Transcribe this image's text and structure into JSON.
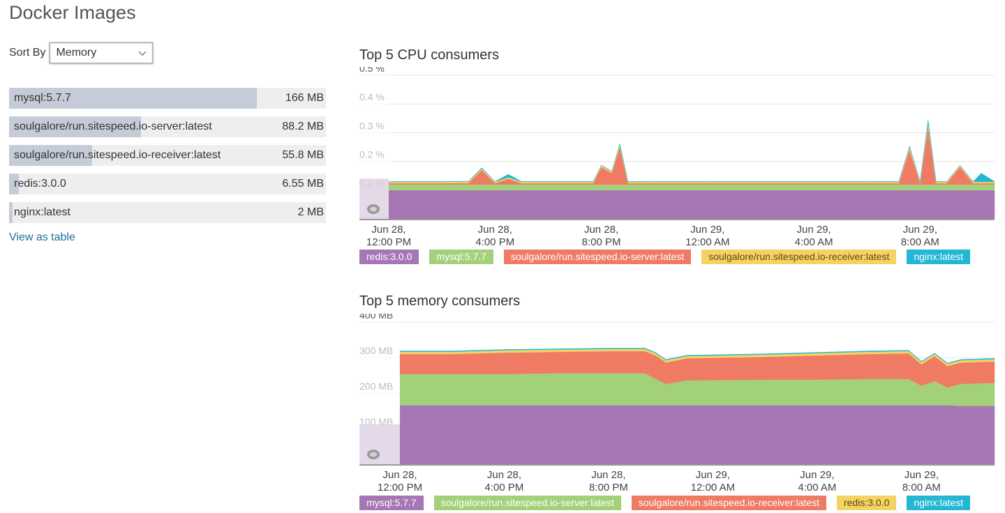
{
  "page": {
    "title": "Docker Images"
  },
  "sort": {
    "label": "Sort By",
    "value": "Memory"
  },
  "images": [
    {
      "name": "mysql:5.7.7",
      "value": "166 MB",
      "fraction": 0.782
    },
    {
      "name": "soulgalore/run.sitespeed.io-server:latest",
      "value": "88.2 MB",
      "fraction": 0.416
    },
    {
      "name": "soulgalore/run.sitespeed.io-receiver:latest",
      "value": "55.8 MB",
      "fraction": 0.263
    },
    {
      "name": "redis:3.0.0",
      "value": "6.55 MB",
      "fraction": 0.031
    },
    {
      "name": "nginx:latest",
      "value": "2 MB",
      "fraction": 0.01
    }
  ],
  "links": {
    "view_as_table": "View as table"
  },
  "colors": {
    "purple": "#a676b5",
    "green": "#a3d179",
    "red": "#ef7b65",
    "yellow": "#f5d363",
    "cyan": "#22b7d3"
  },
  "chart_data": [
    {
      "type": "area",
      "stacked": true,
      "title": "Top 5 CPU consumers",
      "ylabel": "",
      "y_unit": "%",
      "ylim": [
        0,
        0.5
      ],
      "yticks": [
        "0.1 %",
        "0.2 %",
        "0.3 %",
        "0.4 %",
        "0.5 %"
      ],
      "xlim": [
        0,
        22.8
      ],
      "xticks": [
        {
          "t": 0,
          "line1": "Jun 28,",
          "line2": "12:00 PM"
        },
        {
          "t": 4,
          "line1": "Jun 28,",
          "line2": "4:00 PM"
        },
        {
          "t": 8,
          "line1": "Jun 28,",
          "line2": "8:00 PM"
        },
        {
          "t": 12,
          "line1": "Jun 29,",
          "line2": "12:00 AM"
        },
        {
          "t": 16,
          "line1": "Jun 29,",
          "line2": "4:00 AM"
        },
        {
          "t": 20,
          "line1": "Jun 29,",
          "line2": "8:00 AM"
        }
      ],
      "x": [
        0,
        1,
        2,
        3,
        3.5,
        4,
        4.5,
        5,
        6,
        7,
        7.7,
        8,
        8.4,
        8.7,
        9,
        10,
        12,
        14,
        16,
        18,
        19.2,
        19.6,
        20,
        20.3,
        20.6,
        21,
        21.5,
        22,
        22.3,
        22.8
      ],
      "series": [
        {
          "name": "redis:3.0.0",
          "color": "#a676b5",
          "values": [
            0.1,
            0.1,
            0.1,
            0.1,
            0.1,
            0.1,
            0.1,
            0.1,
            0.1,
            0.1,
            0.1,
            0.1,
            0.1,
            0.1,
            0.1,
            0.1,
            0.1,
            0.1,
            0.1,
            0.1,
            0.1,
            0.1,
            0.1,
            0.1,
            0.1,
            0.1,
            0.1,
            0.1,
            0.1,
            0.1
          ]
        },
        {
          "name": "mysql:5.7.7",
          "color": "#a3d179",
          "values": [
            0.02,
            0.02,
            0.02,
            0.02,
            0.02,
            0.02,
            0.02,
            0.02,
            0.02,
            0.02,
            0.02,
            0.02,
            0.02,
            0.02,
            0.02,
            0.02,
            0.02,
            0.02,
            0.02,
            0.02,
            0.02,
            0.02,
            0.02,
            0.02,
            0.02,
            0.02,
            0.02,
            0.02,
            0.02,
            0.02
          ]
        },
        {
          "name": "soulgalore/run.sitespeed.io-server:latest",
          "color": "#ef7b65",
          "values": [
            0.004,
            0.004,
            0.004,
            0.005,
            0.05,
            0.004,
            0.02,
            0.004,
            0.004,
            0.004,
            0.004,
            0.06,
            0.04,
            0.13,
            0.004,
            0.004,
            0.004,
            0.004,
            0.004,
            0.004,
            0.004,
            0.12,
            0.004,
            0.2,
            0.004,
            0.004,
            0.06,
            0.004,
            0.004,
            0.004
          ]
        },
        {
          "name": "soulgalore/run.sitespeed.io-receiver:latest",
          "color": "#f5d363",
          "values": [
            0.005,
            0.005,
            0.005,
            0.005,
            0.005,
            0.005,
            0.005,
            0.005,
            0.005,
            0.005,
            0.005,
            0.006,
            0.005,
            0.008,
            0.005,
            0.005,
            0.005,
            0.005,
            0.005,
            0.005,
            0.005,
            0.01,
            0.005,
            0.015,
            0.005,
            0.005,
            0.005,
            0.005,
            0.005,
            0.005
          ]
        },
        {
          "name": "nginx:latest",
          "color": "#22b7d3",
          "values": [
            0.001,
            0.001,
            0.001,
            0.001,
            0.003,
            0.001,
            0.01,
            0.001,
            0.001,
            0.001,
            0.001,
            0.001,
            0.001,
            0.004,
            0.001,
            0.001,
            0.001,
            0.001,
            0.001,
            0.001,
            0.001,
            0.003,
            0.001,
            0.01,
            0.001,
            0.001,
            0.001,
            0.001,
            0.03,
            0.001
          ]
        }
      ]
    },
    {
      "type": "area",
      "stacked": true,
      "title": "Top 5 memory consumers",
      "ylabel": "",
      "y_unit": "MB",
      "ylim": [
        0,
        400
      ],
      "yticks": [
        "100 MB",
        "200 MB",
        "300 MB",
        "400 MB"
      ],
      "xlim": [
        0,
        22.8
      ],
      "xticks": [
        {
          "t": 0,
          "line1": "Jun 28,",
          "line2": "12:00 PM"
        },
        {
          "t": 4,
          "line1": "Jun 28,",
          "line2": "4:00 PM"
        },
        {
          "t": 8,
          "line1": "Jun 28,",
          "line2": "8:00 PM"
        },
        {
          "t": 12,
          "line1": "Jun 29,",
          "line2": "12:00 AM"
        },
        {
          "t": 16,
          "line1": "Jun 29,",
          "line2": "4:00 AM"
        },
        {
          "t": 20,
          "line1": "Jun 29,",
          "line2": "8:00 AM"
        }
      ],
      "x": [
        0,
        2,
        4,
        6,
        8,
        9.4,
        9.8,
        10.2,
        11,
        14,
        16,
        18,
        19.5,
        20,
        20.5,
        21,
        21.5,
        22.8
      ],
      "series": [
        {
          "name": "mysql:5.7.7",
          "color": "#a676b5",
          "values": [
            166,
            166,
            166,
            166,
            166,
            166,
            166,
            166,
            166,
            166,
            166,
            166,
            166,
            166,
            166,
            166,
            164,
            164
          ]
        },
        {
          "name": "soulgalore/run.sitespeed.io-server:latest",
          "color": "#a3d179",
          "values": [
            88,
            88,
            88,
            90,
            90,
            90,
            75,
            60,
            70,
            72,
            72,
            74,
            74,
            55,
            68,
            50,
            62,
            65
          ]
        },
        {
          "name": "soulgalore/run.sitespeed.io-receiver:latest",
          "color": "#ef7b65",
          "values": [
            56,
            56,
            60,
            60,
            62,
            62,
            65,
            60,
            62,
            64,
            68,
            70,
            72,
            60,
            70,
            60,
            60,
            60
          ]
        },
        {
          "name": "redis:3.0.0",
          "color": "#f5d363",
          "values": [
            6.55,
            6.55,
            6.55,
            6.55,
            6.55,
            6.55,
            6.55,
            6.55,
            6.55,
            6.55,
            6.55,
            6.55,
            6.55,
            6.55,
            6.55,
            6.55,
            6.55,
            6.55
          ]
        },
        {
          "name": "nginx:latest",
          "color": "#22b7d3",
          "values": [
            2,
            2,
            2,
            2,
            2,
            2,
            2,
            2,
            2,
            2,
            2,
            2,
            2,
            2,
            2,
            2,
            2,
            2
          ]
        }
      ]
    }
  ]
}
